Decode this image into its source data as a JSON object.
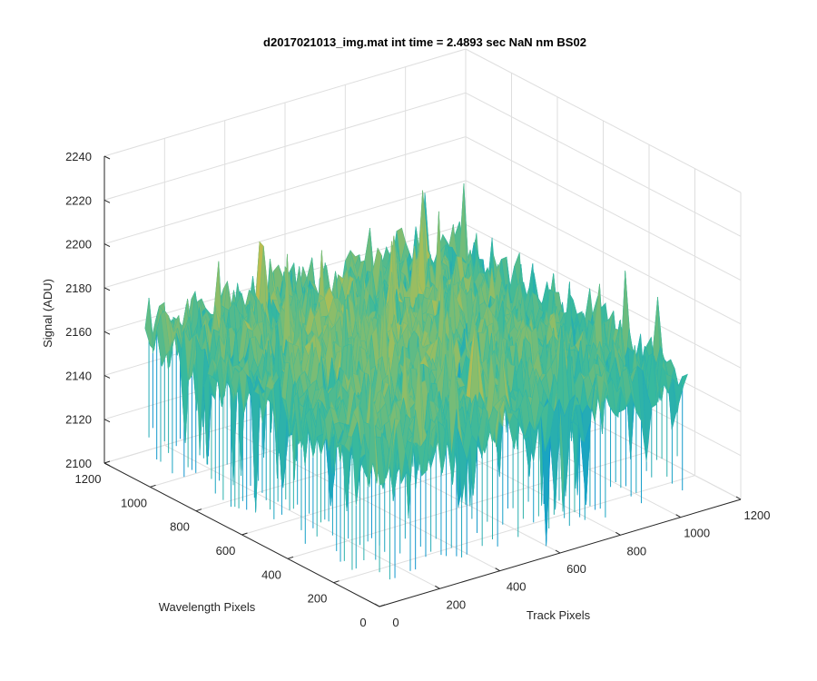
{
  "chart_data": {
    "type": "surface",
    "title": "d2017021013_img.mat int time = 2.4893 sec  NaN nm BS02",
    "xlabel": "Track Pixels",
    "ylabel": "Wavelength Pixels",
    "zlabel": "Signal (ADU)",
    "xlim": [
      0,
      1200
    ],
    "ylim": [
      0,
      1200
    ],
    "zlim": [
      2100,
      2240
    ],
    "x_ticks": [
      0,
      200,
      400,
      600,
      800,
      1000,
      1200
    ],
    "y_ticks": [
      0,
      200,
      400,
      600,
      800,
      1000,
      1200
    ],
    "z_ticks": [
      2100,
      2120,
      2140,
      2160,
      2180,
      2200,
      2220,
      2240
    ],
    "grid": true,
    "colormap": "parula",
    "data_extent": {
      "x": [
        1,
        1024
      ],
      "y": [
        1,
        1024
      ]
    },
    "signal_mean": 2165,
    "signal_range_approx": [
      2105,
      2215
    ]
  }
}
